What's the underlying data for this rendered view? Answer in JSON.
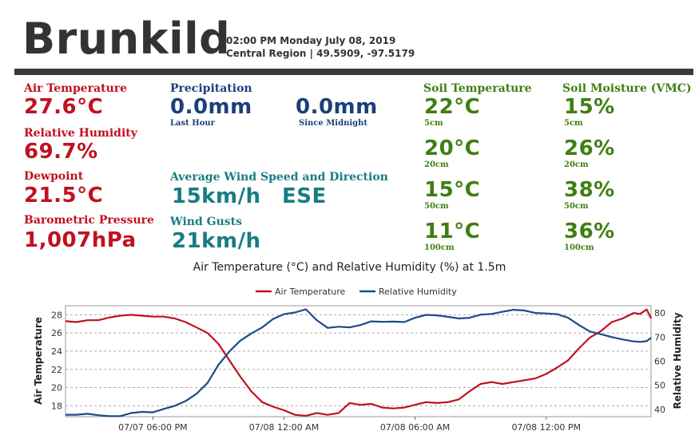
{
  "header": {
    "station": "Brunkild",
    "datetime": "02:00 PM Monday July 08, 2019",
    "region": "Central Region | 49.5909, -97.5179"
  },
  "air": {
    "temp_label": "Air Temperature",
    "temp_value": "27.6°C",
    "rh_label": "Relative Humidity",
    "rh_value": "69.7%",
    "dew_label": "Dewpoint",
    "dew_value": "21.5°C",
    "pressure_label": "Barometric Pressure",
    "pressure_value": "1,007hPa"
  },
  "precip": {
    "label": "Precipitation",
    "last_hour_value": "0.0mm",
    "last_hour_label": "Last Hour",
    "midnight_value": "0.0mm",
    "midnight_label": "Since Midnight"
  },
  "wind": {
    "avg_label": "Average Wind Speed and Direction",
    "avg_speed": "15km/h",
    "avg_direction": "ESE",
    "gust_label": "Wind Gusts",
    "gust_value": "21km/h"
  },
  "soil_temp": {
    "label": "Soil Temperature",
    "readings": [
      {
        "value": "22°C",
        "depth": "5cm"
      },
      {
        "value": "20°C",
        "depth": "20cm"
      },
      {
        "value": "15°C",
        "depth": "50cm"
      },
      {
        "value": "11°C",
        "depth": "100cm"
      }
    ]
  },
  "soil_moisture": {
    "label": "Soil Moisture (VMC)",
    "readings": [
      {
        "value": "15%",
        "depth": "5cm"
      },
      {
        "value": "26%",
        "depth": "20cm"
      },
      {
        "value": "38%",
        "depth": "50cm"
      },
      {
        "value": "36%",
        "depth": "100cm"
      }
    ]
  },
  "colors": {
    "temp": "#c0111f",
    "rh": "#1b4b8a"
  },
  "chart_data": {
    "type": "line",
    "title": "Air Temperature (°C) and Relative Humidity (%) at 1.5m",
    "ylabel_left": "Air Temperature",
    "ylabel_right": "Relative Humidity",
    "ylim_left": [
      16.8,
      29
    ],
    "ylim_right": [
      37,
      83
    ],
    "yticks_left": [
      18,
      20,
      22,
      24,
      26,
      28
    ],
    "yticks_right": [
      40,
      50,
      60,
      70,
      80
    ],
    "x_range_hours": [
      0,
      26.8
    ],
    "x_ticks": [
      {
        "hour": 4,
        "label": "07/07 06:00 PM"
      },
      {
        "hour": 10,
        "label": "07/08 12:00 AM"
      },
      {
        "hour": 16,
        "label": "07/08 06:00 AM"
      },
      {
        "hour": 22,
        "label": "07/08 12:00 PM"
      }
    ],
    "legend": [
      "Air Temperature",
      "Relative Humidity"
    ],
    "series": [
      {
        "name": "Air Temperature",
        "x": [
          0,
          0.5,
          1,
          1.5,
          2,
          2.5,
          3,
          3.5,
          4,
          4.5,
          5,
          5.5,
          6,
          6.5,
          7,
          7.5,
          8,
          8.5,
          9,
          9.5,
          10,
          10.5,
          11,
          11.5,
          12,
          12.5,
          13,
          13.5,
          14,
          14.5,
          15,
          15.5,
          16,
          16.5,
          17,
          17.5,
          18,
          18.5,
          19,
          19.5,
          20,
          20.5,
          21,
          21.5,
          22,
          22.5,
          23,
          23.5,
          24,
          24.5,
          25,
          25.5,
          26,
          26.3,
          26.6,
          26.8
        ],
        "values": [
          27.3,
          27.2,
          27.4,
          27.4,
          27.7,
          27.9,
          28.0,
          27.9,
          27.8,
          27.8,
          27.6,
          27.2,
          26.6,
          26.0,
          24.8,
          23.0,
          21.2,
          19.6,
          18.4,
          17.9,
          17.5,
          17.0,
          16.9,
          17.2,
          17.0,
          17.2,
          18.3,
          18.1,
          18.2,
          17.8,
          17.7,
          17.8,
          18.1,
          18.4,
          18.3,
          18.4,
          18.7,
          19.6,
          20.4,
          20.6,
          20.4,
          20.6,
          20.8,
          21.0,
          21.5,
          22.2,
          23.0,
          24.3,
          25.5,
          26.2,
          27.2,
          27.6,
          28.2,
          28.1,
          28.6,
          27.6
        ]
      },
      {
        "name": "Relative Humidity",
        "x": [
          0,
          0.5,
          1,
          1.5,
          2,
          2.5,
          3,
          3.5,
          4,
          4.5,
          5,
          5.5,
          6,
          6.5,
          7,
          7.5,
          8,
          8.5,
          9,
          9.5,
          10,
          10.5,
          11,
          11.5,
          12,
          12.5,
          13,
          13.5,
          14,
          14.5,
          15,
          15.5,
          16,
          16.5,
          17,
          17.5,
          18,
          18.5,
          19,
          19.5,
          20,
          20.5,
          21,
          21.5,
          22,
          22.5,
          23,
          23.5,
          24,
          24.5,
          25,
          25.5,
          26,
          26.3,
          26.6,
          26.8
        ],
        "values": [
          37.8,
          37.8,
          38.2,
          37.6,
          37.2,
          37.2,
          38.5,
          39.0,
          38.8,
          40.2,
          41.5,
          43.5,
          46.5,
          51.0,
          58.5,
          64.0,
          68.5,
          71.5,
          74.0,
          77.5,
          79.5,
          80.2,
          81.5,
          77.0,
          73.8,
          74.3,
          74.0,
          75.0,
          76.5,
          76.3,
          76.4,
          76.2,
          78.0,
          79.2,
          79.0,
          78.4,
          77.7,
          78.0,
          79.3,
          79.6,
          80.5,
          81.3,
          81.0,
          80.0,
          79.8,
          79.5,
          78.0,
          75.0,
          72.3,
          71.2,
          70.0,
          69.0,
          68.2,
          68.0,
          68.3,
          69.7
        ]
      }
    ]
  }
}
